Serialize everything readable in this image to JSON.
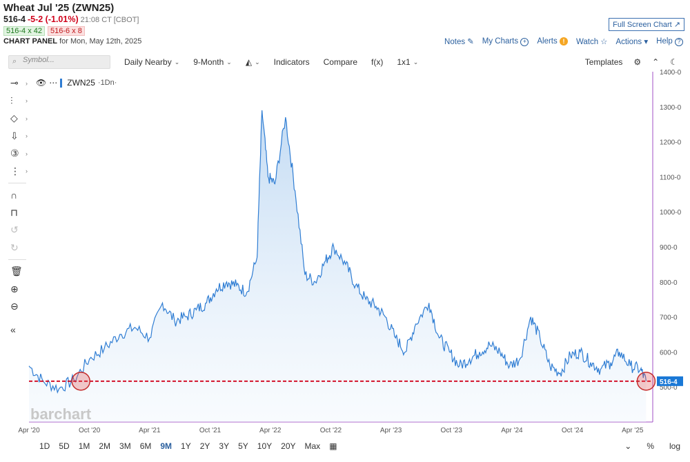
{
  "header": {
    "title": "Wheat Jul '25 (ZWN25)",
    "last": "516-4",
    "change": "-5-2 (-1.01%)",
    "time": "21:08 CT [CBOT]",
    "bid": "516-4 x 42",
    "ask": "516-6 x 8",
    "panel_label": "CHART PANEL",
    "panel_date": "for Mon, May 12th, 2025"
  },
  "toplinks": {
    "full_screen": "Full Screen Chart",
    "notes": "Notes",
    "my_charts": "My Charts",
    "alerts": "Alerts",
    "watch": "Watch",
    "actions": "Actions",
    "help": "Help"
  },
  "toolbar": {
    "symbol_placeholder": "Symbol...",
    "interval": "Daily Nearby",
    "range": "9-Month",
    "indicators": "Indicators",
    "compare": "Compare",
    "fx": "f(x)",
    "layout": "1x1",
    "templates": "Templates"
  },
  "chart": {
    "series_name": "ZWN25",
    "series_suffix": "·1Dn·",
    "last_price_label": "516-4",
    "watermark": "barchart"
  },
  "periods": [
    "1D",
    "5D",
    "1M",
    "2M",
    "3M",
    "6M",
    "9M",
    "1Y",
    "2Y",
    "3Y",
    "5Y",
    "10Y",
    "20Y",
    "Max"
  ],
  "active_period": "9M",
  "bottom_right": {
    "percent": "%",
    "log": "log"
  },
  "colors": {
    "line": "#2f7dd3",
    "last_price": "#d0021b",
    "axis": "#a14fc4",
    "link": "#2a5f9e"
  },
  "chart_data": {
    "type": "area",
    "title": "",
    "xlabel": "",
    "ylabel": "",
    "ylim": [
      400,
      1400
    ],
    "y_ticks": [
      "1400-0",
      "1300-0",
      "1200-0",
      "1100-0",
      "1000-0",
      "900-0",
      "800-0",
      "700-0",
      "600-0",
      "500-0"
    ],
    "x_ticks": [
      "Apr '20",
      "Oct '20",
      "Apr '21",
      "Oct '21",
      "Apr '22",
      "Oct '22",
      "Apr '23",
      "Oct '23",
      "Apr '24",
      "Oct '24",
      "Apr '25"
    ],
    "x_range": [
      "2020-04-01",
      "2025-06-01"
    ],
    "last_value": 516.5,
    "series": [
      {
        "name": "ZWN25",
        "x": [
          "2020-04-01",
          "2020-05-15",
          "2020-07-01",
          "2020-08-15",
          "2020-10-01",
          "2020-11-15",
          "2021-01-01",
          "2021-02-15",
          "2021-04-01",
          "2021-05-10",
          "2021-06-15",
          "2021-07-20",
          "2021-08-20",
          "2021-09-20",
          "2021-10-20",
          "2021-11-20",
          "2021-12-20",
          "2022-01-20",
          "2022-02-20",
          "2022-03-07",
          "2022-03-25",
          "2022-04-15",
          "2022-05-17",
          "2022-06-15",
          "2022-07-15",
          "2022-08-15",
          "2022-09-15",
          "2022-10-10",
          "2022-11-15",
          "2022-12-15",
          "2023-01-15",
          "2023-02-15",
          "2023-03-15",
          "2023-04-15",
          "2023-05-15",
          "2023-06-15",
          "2023-07-25",
          "2023-08-25",
          "2023-09-25",
          "2023-10-25",
          "2023-11-25",
          "2023-12-25",
          "2024-01-25",
          "2024-02-25",
          "2024-03-25",
          "2024-04-25",
          "2024-05-28",
          "2024-06-25",
          "2024-07-25",
          "2024-08-25",
          "2024-09-25",
          "2024-10-25",
          "2024-11-25",
          "2024-12-25",
          "2025-01-25",
          "2025-02-20",
          "2025-03-25",
          "2025-04-25",
          "2025-05-12"
        ],
        "values": [
          560,
          515,
          495,
          520,
          580,
          610,
          650,
          670,
          640,
          740,
          690,
          700,
          720,
          740,
          780,
          800,
          790,
          770,
          870,
          1290,
          1100,
          1080,
          1270,
          1060,
          820,
          800,
          860,
          900,
          850,
          790,
          750,
          730,
          700,
          640,
          600,
          680,
          740,
          640,
          600,
          560,
          580,
          600,
          620,
          600,
          560,
          580,
          700,
          640,
          560,
          540,
          590,
          600,
          570,
          550,
          570,
          600,
          560,
          550,
          516.5
        ]
      }
    ]
  }
}
